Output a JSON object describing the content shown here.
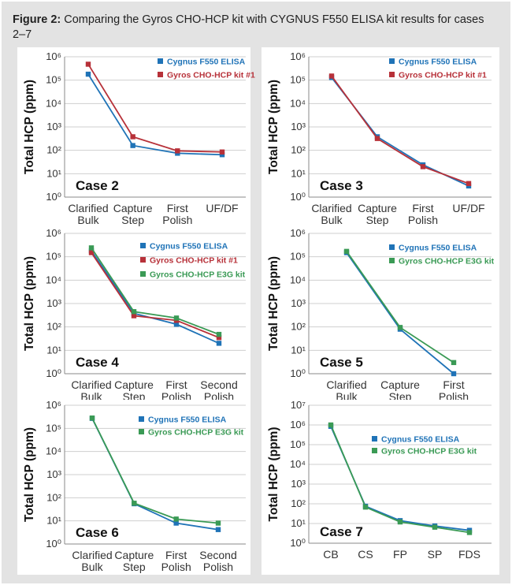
{
  "caption": {
    "label": "Figure 2:",
    "text": "Comparing the Gyros CHO-HCP kit with CYGNUS F550 ELISA kit results for cases 2–7"
  },
  "colors": {
    "background": "#e3e3e3",
    "cygnus": "#1f73b7",
    "kit1": "#b73139",
    "e3g": "#3a9a55"
  },
  "chart_data": [
    {
      "type": "line",
      "yscale": "log",
      "ylabel": "Total HCP (ppm)",
      "case_label": "Case 2",
      "ylim_exp": [
        0,
        6
      ],
      "categories": [
        [
          "Clarified",
          "Bulk"
        ],
        [
          "Capture",
          "Step"
        ],
        [
          "First",
          "Polish"
        ],
        [
          "UF/DF"
        ]
      ],
      "series": [
        {
          "name": "Cygnus F550 ELISA",
          "color": "#1f73b7",
          "values": [
            180000,
            160,
            75,
            65
          ]
        },
        {
          "name": "Gyros CHO-HCP kit #1",
          "color": "#b73139",
          "values": [
            480000,
            380,
            95,
            85
          ]
        }
      ]
    },
    {
      "type": "line",
      "yscale": "log",
      "ylabel": "Total HCP (ppm)",
      "case_label": "Case 3",
      "ylim_exp": [
        0,
        6
      ],
      "categories": [
        [
          "Clarified",
          "Bulk"
        ],
        [
          "Capture",
          "Step"
        ],
        [
          "First",
          "Polish"
        ],
        [
          "UF/DF"
        ]
      ],
      "series": [
        {
          "name": "Cygnus F550 ELISA",
          "color": "#1f73b7",
          "values": [
            130000,
            380,
            24,
            3
          ]
        },
        {
          "name": "Gyros CHO-HCP kit #1",
          "color": "#b73139",
          "values": [
            150000,
            320,
            20,
            3.8
          ]
        }
      ]
    },
    {
      "type": "line",
      "yscale": "log",
      "ylabel": "Total HCP (ppm)",
      "case_label": "Case 4",
      "ylim_exp": [
        0,
        6
      ],
      "categories": [
        [
          "Clarified",
          "Bulk"
        ],
        [
          "Capture",
          "Step"
        ],
        [
          "First",
          "Polish"
        ],
        [
          "Second",
          "Polish"
        ]
      ],
      "series": [
        {
          "name": "Cygnus F550 ELISA",
          "color": "#1f73b7",
          "values": [
            180000,
            380,
            130,
            20
          ]
        },
        {
          "name": "Gyros CHO-HCP kit #1",
          "color": "#b73139",
          "values": [
            150000,
            300,
            190,
            35
          ]
        },
        {
          "name": "Gyros CHO-HCP E3G kit",
          "color": "#3a9a55",
          "values": [
            240000,
            450,
            240,
            48
          ]
        }
      ]
    },
    {
      "type": "line",
      "yscale": "log",
      "ylabel": "Total HCP (ppm)",
      "case_label": "Case 5",
      "ylim_exp": [
        0,
        6
      ],
      "categories": [
        [
          "Clarified",
          "Bulk"
        ],
        [
          "Capture",
          "Step"
        ],
        [
          "First",
          "Polish"
        ]
      ],
      "series": [
        {
          "name": "Cygnus F550 ELISA",
          "color": "#1f73b7",
          "values": [
            150000,
            80,
            1
          ]
        },
        {
          "name": "Gyros CHO-HCP E3G kit",
          "color": "#3a9a55",
          "values": [
            170000,
            95,
            3
          ]
        }
      ]
    },
    {
      "type": "line",
      "yscale": "log",
      "ylabel": "Total HCP (ppm)",
      "case_label": "Case 6",
      "ylim_exp": [
        0,
        6
      ],
      "categories": [
        [
          "Clarified",
          "Bulk"
        ],
        [
          "Capture",
          "Step"
        ],
        [
          "First",
          "Polish"
        ],
        [
          "Second",
          "Polish"
        ]
      ],
      "series": [
        {
          "name": "Cygnus F550 ELISA",
          "color": "#1f73b7",
          "values": [
            270000,
            55,
            8,
            4.2
          ]
        },
        {
          "name": "Gyros CHO-HCP E3G kit",
          "color": "#3a9a55",
          "values": [
            280000,
            58,
            12,
            8
          ]
        }
      ]
    },
    {
      "type": "line",
      "yscale": "log",
      "ylabel": "Total HCP (ppm)",
      "case_label": "Case 7",
      "ylim_exp": [
        0,
        7
      ],
      "categories": [
        [
          "CB"
        ],
        [
          "CS"
        ],
        [
          "FP"
        ],
        [
          "SP"
        ],
        [
          "FDS"
        ]
      ],
      "series": [
        {
          "name": "Cygnus F550 ELISA",
          "color": "#1f73b7",
          "values": [
            850000,
            75,
            14,
            7.5,
            4.5
          ]
        },
        {
          "name": "Gyros CHO-HCP E3G kit",
          "color": "#3a9a55",
          "values": [
            1000000,
            68,
            12,
            6.5,
            3.5
          ]
        }
      ]
    }
  ]
}
